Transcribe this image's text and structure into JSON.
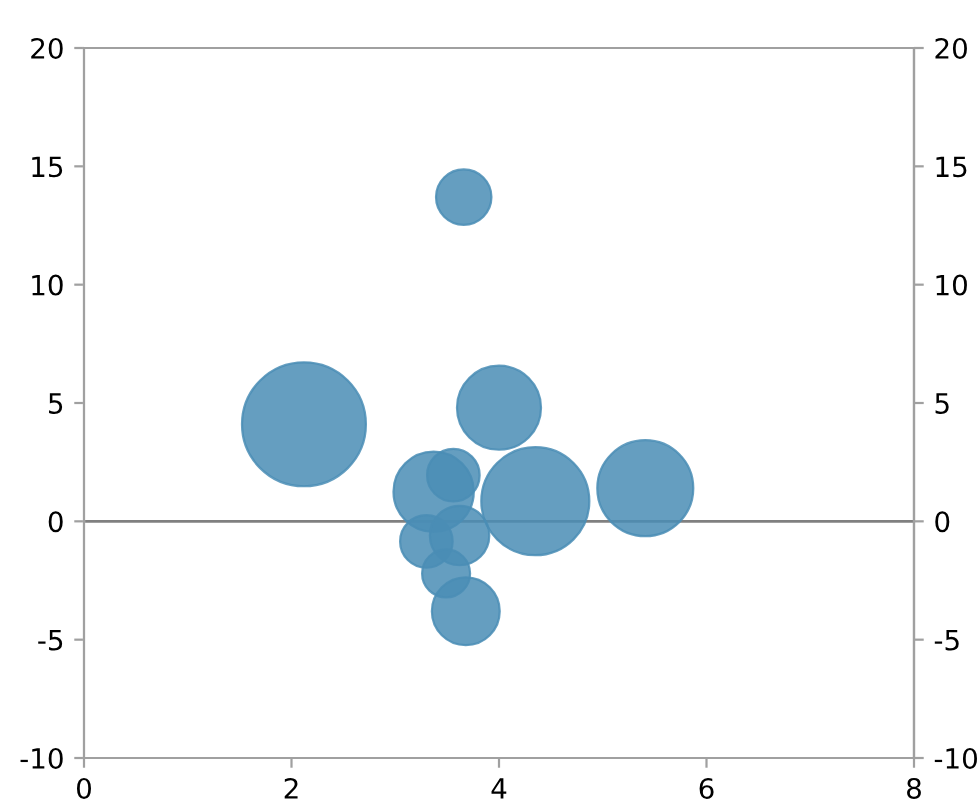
{
  "chart_data": {
    "type": "bubble",
    "x": [
      2.12,
      3.66,
      4.0,
      5.41,
      4.35,
      3.37,
      3.56,
      3.3,
      3.62,
      3.49,
      3.68
    ],
    "values": [
      4.1,
      13.7,
      4.8,
      1.4,
      0.85,
      1.25,
      1.95,
      -0.85,
      -0.6,
      -2.2,
      -3.8
    ],
    "sizes": [
      1,
      0.2,
      0.46,
      0.6,
      0.76,
      0.42,
      0.18,
      0.18,
      0.23,
      0.15,
      0.3
    ],
    "color": "#4a8db5",
    "xlim": [
      0,
      8
    ],
    "xticks": [
      0,
      2,
      4,
      6,
      8
    ],
    "ylim": [
      -10,
      20
    ],
    "yticks": [
      -10,
      -5,
      0,
      5,
      10,
      15,
      20
    ],
    "y2lim": [
      -10,
      20
    ],
    "y2ticks": [
      -10,
      -5,
      0,
      5,
      10,
      15,
      20
    ],
    "ref_lines": [
      {
        "axis": "y",
        "value": 0,
        "color": "#808080"
      }
    ],
    "grid": false,
    "legend": false
  }
}
